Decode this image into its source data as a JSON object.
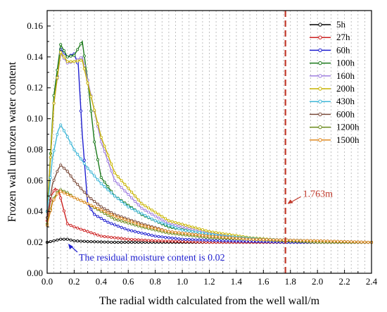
{
  "chart_data": {
    "type": "line",
    "xlabel": "The radial width calculated from the well wall/m",
    "ylabel": "Frozen wall unfrozen water content",
    "xlim": [
      0,
      2.4
    ],
    "ylim": [
      0,
      0.17
    ],
    "xticks": [
      "0.0",
      "0.2",
      "0.4",
      "0.6",
      "0.8",
      "1.0",
      "1.2",
      "1.4",
      "1.6",
      "1.8",
      "2.0",
      "2.2",
      "2.4"
    ],
    "yticks": [
      "0.00",
      "0.02",
      "0.04",
      "0.06",
      "0.08",
      "0.10",
      "0.12",
      "0.14",
      "0.16"
    ],
    "vertical_gridlines": "dotted, every 0.05 m",
    "legend_position": "top-right",
    "marker_line_x": 1.763,
    "annotations": {
      "marker_label": "1.763m",
      "residual_label": "The residual moisture content is 0.02",
      "color_marker": "#c0392b",
      "color_residual": "#1f1fd0"
    },
    "series": [
      {
        "name": "5h",
        "color": "#000000",
        "points": [
          [
            0,
            0.02
          ],
          [
            0.05,
            0.021
          ],
          [
            0.1,
            0.022
          ],
          [
            0.15,
            0.022
          ],
          [
            0.2,
            0.021
          ],
          [
            0.3,
            0.0205
          ],
          [
            0.5,
            0.02
          ],
          [
            1.0,
            0.02
          ],
          [
            1.5,
            0.02
          ],
          [
            2.0,
            0.02
          ],
          [
            2.4,
            0.02
          ]
        ]
      },
      {
        "name": "27h",
        "color": "#cc2020",
        "points": [
          [
            0,
            0.034
          ],
          [
            0.03,
            0.05
          ],
          [
            0.06,
            0.055
          ],
          [
            0.09,
            0.052
          ],
          [
            0.12,
            0.042
          ],
          [
            0.15,
            0.032
          ],
          [
            0.2,
            0.03
          ],
          [
            0.3,
            0.027
          ],
          [
            0.4,
            0.024
          ],
          [
            0.6,
            0.022
          ],
          [
            0.8,
            0.021
          ],
          [
            1.2,
            0.02
          ],
          [
            1.8,
            0.02
          ],
          [
            2.4,
            0.02
          ]
        ]
      },
      {
        "name": "60h",
        "color": "#1f1fd0",
        "points": [
          [
            0,
            0.04
          ],
          [
            0.05,
            0.11
          ],
          [
            0.1,
            0.145
          ],
          [
            0.15,
            0.14
          ],
          [
            0.2,
            0.142
          ],
          [
            0.23,
            0.135
          ],
          [
            0.26,
            0.09
          ],
          [
            0.3,
            0.045
          ],
          [
            0.35,
            0.038
          ],
          [
            0.45,
            0.033
          ],
          [
            0.6,
            0.028
          ],
          [
            0.8,
            0.024
          ],
          [
            1.0,
            0.022
          ],
          [
            1.3,
            0.021
          ],
          [
            1.8,
            0.02
          ],
          [
            2.4,
            0.02
          ]
        ]
      },
      {
        "name": "100h",
        "color": "#1b7a1b",
        "points": [
          [
            0,
            0.04
          ],
          [
            0.05,
            0.115
          ],
          [
            0.1,
            0.148
          ],
          [
            0.15,
            0.14
          ],
          [
            0.2,
            0.141
          ],
          [
            0.26,
            0.15
          ],
          [
            0.3,
            0.125
          ],
          [
            0.35,
            0.085
          ],
          [
            0.4,
            0.062
          ],
          [
            0.5,
            0.05
          ],
          [
            0.7,
            0.038
          ],
          [
            0.9,
            0.03
          ],
          [
            1.2,
            0.025
          ],
          [
            1.5,
            0.022
          ],
          [
            1.8,
            0.021
          ],
          [
            2.4,
            0.02
          ]
        ]
      },
      {
        "name": "160h",
        "color": "#a080e0",
        "points": [
          [
            0,
            0.04
          ],
          [
            0.05,
            0.11
          ],
          [
            0.1,
            0.142
          ],
          [
            0.15,
            0.136
          ],
          [
            0.2,
            0.137
          ],
          [
            0.26,
            0.14
          ],
          [
            0.3,
            0.125
          ],
          [
            0.4,
            0.085
          ],
          [
            0.5,
            0.06
          ],
          [
            0.7,
            0.042
          ],
          [
            0.9,
            0.032
          ],
          [
            1.2,
            0.026
          ],
          [
            1.5,
            0.022
          ],
          [
            1.8,
            0.021
          ],
          [
            2.4,
            0.02
          ]
        ]
      },
      {
        "name": "200h",
        "color": "#c8b400",
        "points": [
          [
            0,
            0.04
          ],
          [
            0.05,
            0.11
          ],
          [
            0.1,
            0.143
          ],
          [
            0.15,
            0.137
          ],
          [
            0.2,
            0.137
          ],
          [
            0.26,
            0.138
          ],
          [
            0.3,
            0.123
          ],
          [
            0.4,
            0.088
          ],
          [
            0.5,
            0.065
          ],
          [
            0.7,
            0.045
          ],
          [
            0.9,
            0.034
          ],
          [
            1.2,
            0.027
          ],
          [
            1.5,
            0.023
          ],
          [
            1.8,
            0.021
          ],
          [
            2.4,
            0.02
          ]
        ]
      },
      {
        "name": "430h",
        "color": "#40b8d8",
        "points": [
          [
            0,
            0.04
          ],
          [
            0.04,
            0.075
          ],
          [
            0.08,
            0.092
          ],
          [
            0.1,
            0.096
          ],
          [
            0.14,
            0.09
          ],
          [
            0.2,
            0.08
          ],
          [
            0.3,
            0.068
          ],
          [
            0.4,
            0.058
          ],
          [
            0.5,
            0.05
          ],
          [
            0.6,
            0.043
          ],
          [
            0.8,
            0.034
          ],
          [
            1.0,
            0.028
          ],
          [
            1.3,
            0.024
          ],
          [
            1.6,
            0.022
          ],
          [
            2.0,
            0.021
          ],
          [
            2.4,
            0.02
          ]
        ]
      },
      {
        "name": "600h",
        "color": "#7a4a3a",
        "points": [
          [
            0,
            0.036
          ],
          [
            0.04,
            0.058
          ],
          [
            0.08,
            0.067
          ],
          [
            0.1,
            0.07
          ],
          [
            0.15,
            0.066
          ],
          [
            0.2,
            0.06
          ],
          [
            0.3,
            0.05
          ],
          [
            0.4,
            0.043
          ],
          [
            0.5,
            0.038
          ],
          [
            0.7,
            0.032
          ],
          [
            0.9,
            0.027
          ],
          [
            1.2,
            0.024
          ],
          [
            1.5,
            0.022
          ],
          [
            2.0,
            0.021
          ],
          [
            2.4,
            0.02
          ]
        ]
      },
      {
        "name": "1200h",
        "color": "#6a8a1a",
        "points": [
          [
            0,
            0.032
          ],
          [
            0.04,
            0.047
          ],
          [
            0.08,
            0.053
          ],
          [
            0.1,
            0.054
          ],
          [
            0.15,
            0.052
          ],
          [
            0.2,
            0.049
          ],
          [
            0.3,
            0.045
          ],
          [
            0.4,
            0.04
          ],
          [
            0.5,
            0.035
          ],
          [
            0.7,
            0.03
          ],
          [
            0.9,
            0.026
          ],
          [
            1.2,
            0.023
          ],
          [
            1.5,
            0.022
          ],
          [
            2.0,
            0.02
          ],
          [
            2.4,
            0.02
          ]
        ]
      },
      {
        "name": "1500h",
        "color": "#e08a20",
        "points": [
          [
            0,
            0.031
          ],
          [
            0.04,
            0.046
          ],
          [
            0.08,
            0.052
          ],
          [
            0.1,
            0.053
          ],
          [
            0.15,
            0.051
          ],
          [
            0.2,
            0.049
          ],
          [
            0.3,
            0.045
          ],
          [
            0.4,
            0.041
          ],
          [
            0.5,
            0.037
          ],
          [
            0.7,
            0.031
          ],
          [
            0.9,
            0.027
          ],
          [
            1.2,
            0.024
          ],
          [
            1.5,
            0.022
          ],
          [
            2.0,
            0.021
          ],
          [
            2.4,
            0.02
          ]
        ]
      }
    ]
  }
}
